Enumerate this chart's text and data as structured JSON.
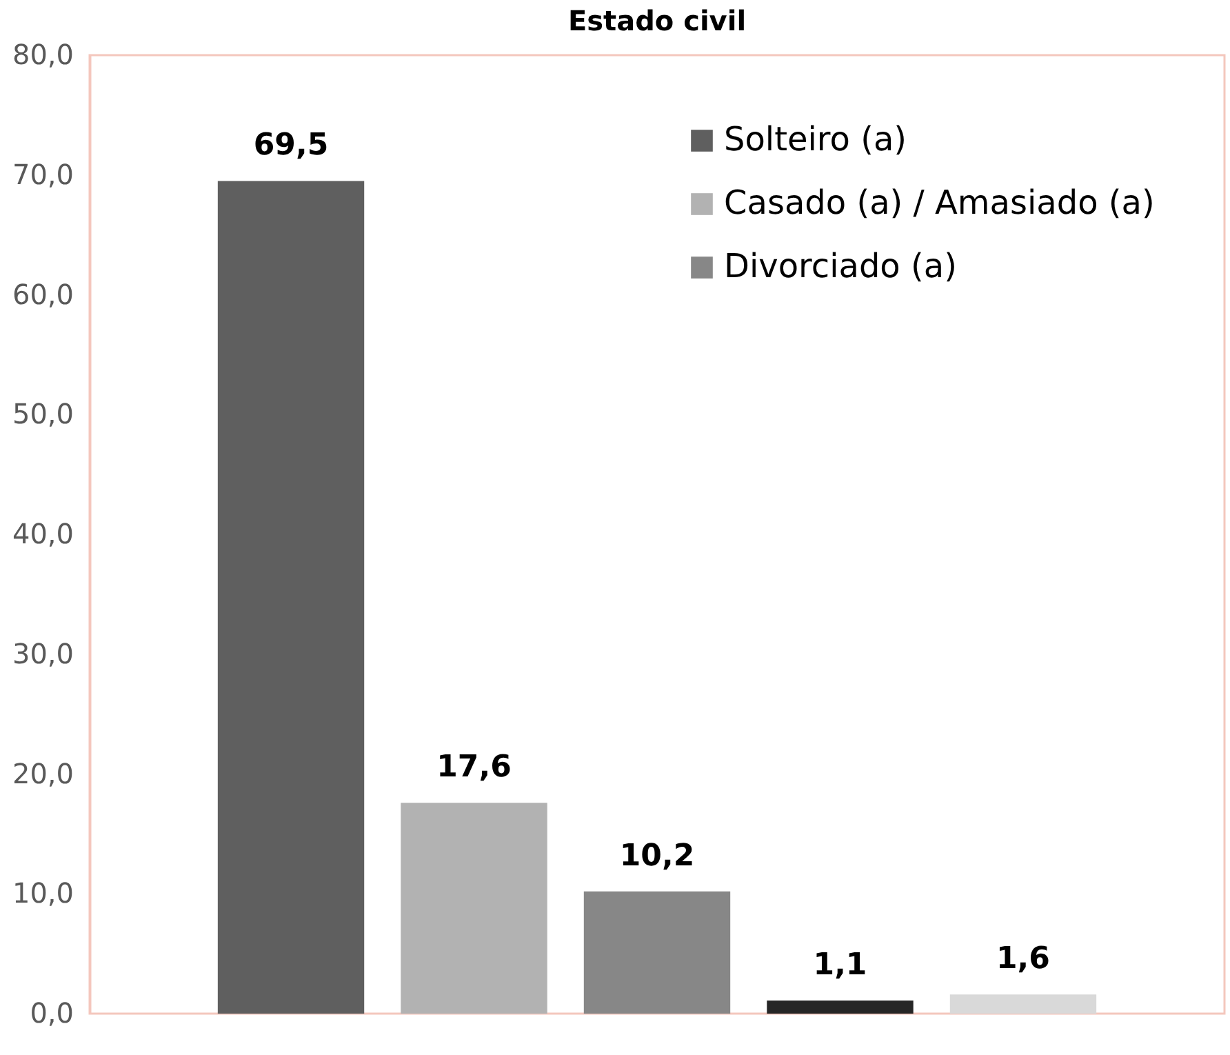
{
  "chart_data": {
    "type": "bar",
    "title": "Estado civil",
    "categories": [
      null
    ],
    "series": [
      {
        "name": "Solteiro (a)",
        "color": "#5f5f5f",
        "values": [
          69.5
        ],
        "value_labels": [
          "69,5"
        ]
      },
      {
        "name": "Casado (a) / Amasiado (a)",
        "color": "#b2b2b2",
        "values": [
          17.6
        ],
        "value_labels": [
          "17,6"
        ]
      },
      {
        "name": "Divorciado (a)",
        "color": "#878787",
        "values": [
          10.2
        ],
        "value_labels": [
          "10,2"
        ]
      },
      {
        "color": "#262626",
        "values": [
          1.1
        ],
        "value_labels": [
          "1,1"
        ]
      },
      {
        "color": "#d9d9d9",
        "values": [
          1.6
        ],
        "value_labels": [
          "1,6"
        ]
      }
    ],
    "ylim": [
      0,
      80
    ],
    "yticks": [
      {
        "value": 0,
        "label": "0,0"
      },
      {
        "value": 10,
        "label": "10,0"
      },
      {
        "value": 20,
        "label": "20,0"
      },
      {
        "value": 30,
        "label": "30,0"
      },
      {
        "value": 40,
        "label": "40,0"
      },
      {
        "value": 50,
        "label": "50,0"
      },
      {
        "value": 60,
        "label": "60,0"
      },
      {
        "value": 70,
        "label": "70,0"
      },
      {
        "value": 80,
        "label": "80,0"
      }
    ],
    "grid": false,
    "legend": "top right"
  }
}
